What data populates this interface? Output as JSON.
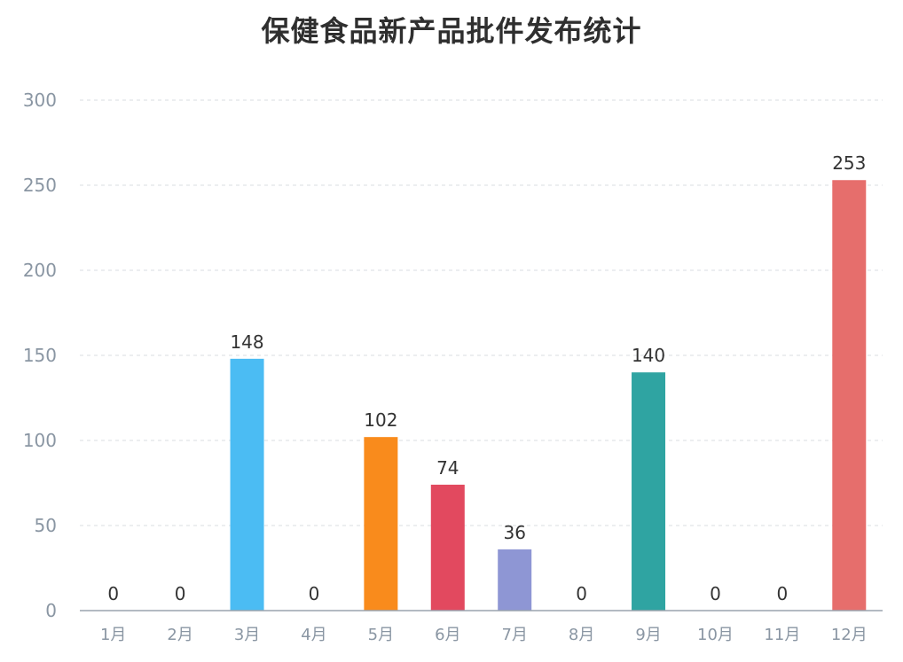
{
  "chart_data": {
    "type": "bar",
    "title": "保健食品新产品批件发布统计",
    "categories": [
      "1月",
      "2月",
      "3月",
      "4月",
      "5月",
      "6月",
      "7月",
      "8月",
      "9月",
      "10月",
      "11月",
      "12月"
    ],
    "values": [
      0,
      0,
      148,
      0,
      102,
      74,
      36,
      0,
      140,
      0,
      0,
      253
    ],
    "colors": [
      "#4bbcf3",
      "#4bbcf3",
      "#4bbcf3",
      "#4bbcf3",
      "#f98b1c",
      "#e2495f",
      "#8e96d4",
      "#8e96d4",
      "#2fa4a2",
      "#2fa4a2",
      "#2fa4a2",
      "#e66e6c"
    ],
    "ylim": [
      0,
      300
    ],
    "yticks": [
      0,
      50,
      100,
      150,
      200,
      250,
      300
    ],
    "grid": true,
    "legend": "none",
    "xlabel": "",
    "ylabel": ""
  }
}
